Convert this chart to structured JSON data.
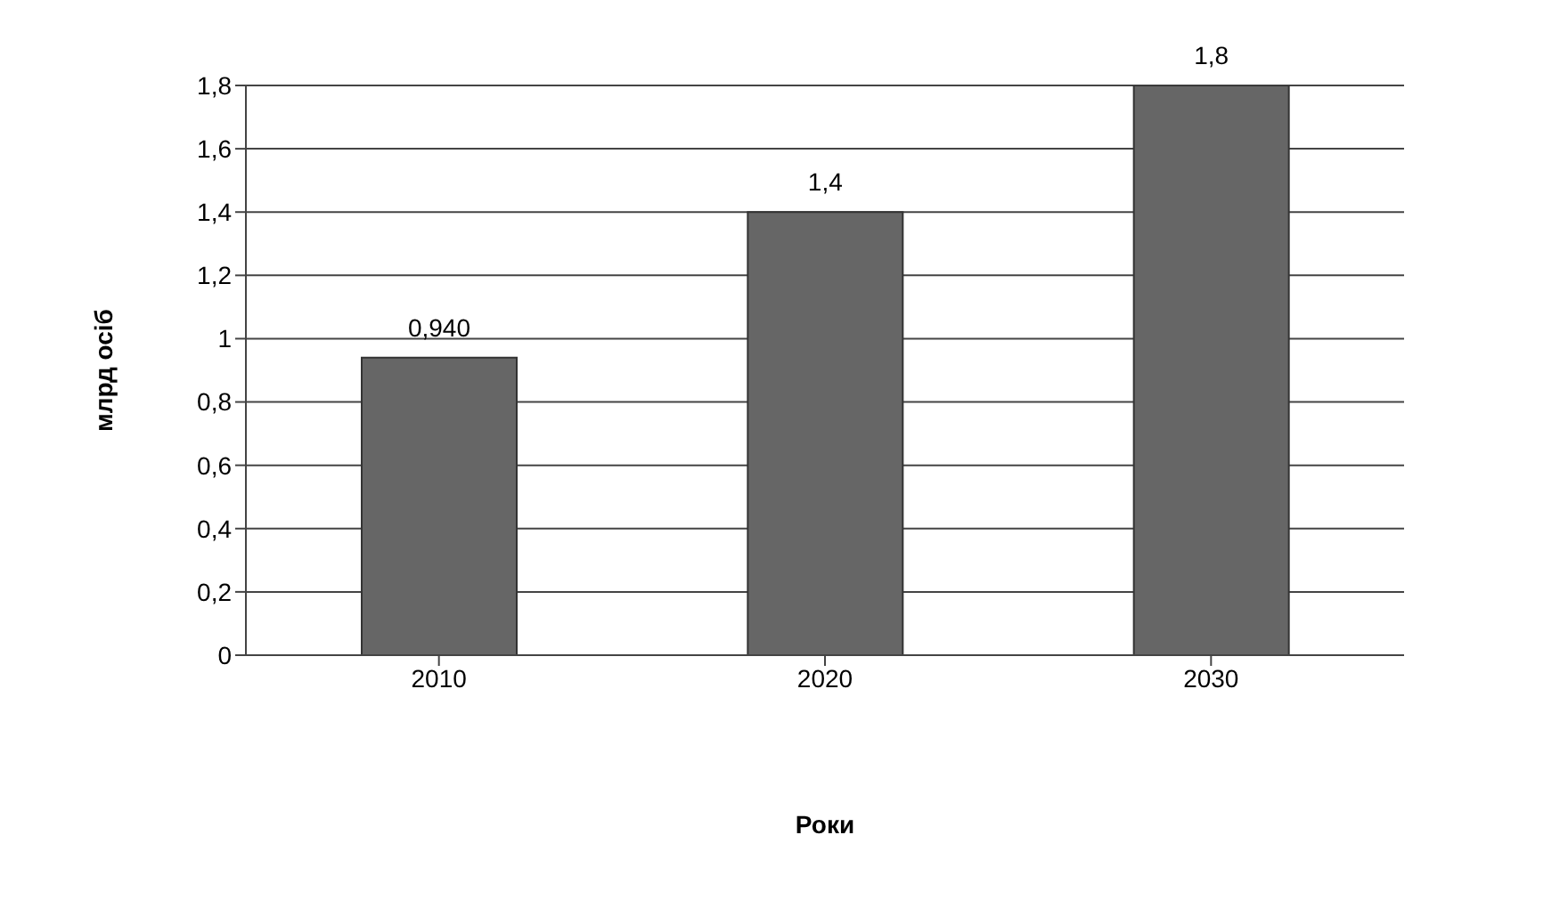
{
  "chart_data": {
    "type": "bar",
    "categories": [
      "2010",
      "2020",
      "2030"
    ],
    "values": [
      0.94,
      1.4,
      1.8
    ],
    "value_labels": [
      "0,940",
      "1,4",
      "1,8"
    ],
    "color": "#666666",
    "xlabel": "Роки",
    "ylabel": "млрд осіб",
    "ylim": [
      0,
      1.8
    ],
    "yticks": [
      0,
      {
        "value": 0.2,
        "label": "0,2"
      },
      {
        "value": 0.4,
        "label": "0,4"
      },
      {
        "value": 0.6,
        "label": "0,6"
      },
      {
        "value": 0.8,
        "label": "0,8"
      },
      1,
      {
        "value": 1.2,
        "label": "1,2"
      },
      {
        "value": 1.4,
        "label": "1,4"
      },
      {
        "value": 1.6,
        "label": "1,6"
      },
      {
        "value": 1.8,
        "label": "1,8"
      }
    ],
    "grid": "y"
  }
}
